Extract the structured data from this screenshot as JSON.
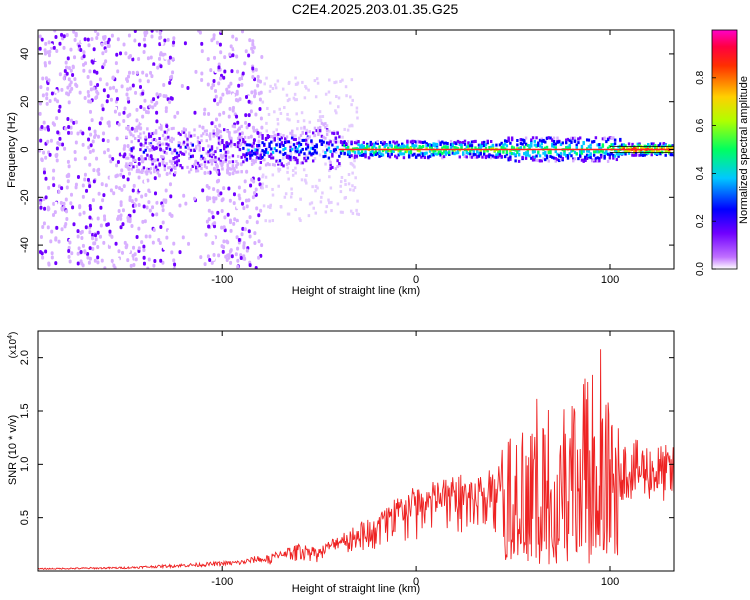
{
  "title": "C2E4.2025.203.01.35.G25",
  "chart_data": [
    {
      "type": "heatmap",
      "xlabel": "Height of straight line (km)",
      "ylabel": "Frequency (Hz)",
      "xlim": [
        -195,
        133
      ],
      "ylim": [
        -50,
        50
      ],
      "x_ticks": [
        -100,
        0,
        100
      ],
      "y_ticks": [
        40,
        20,
        0,
        -20,
        -40
      ],
      "x_tick_labels": [
        "-100",
        "0",
        "100"
      ],
      "y_tick_labels": [
        "40",
        "20",
        "0",
        "-20",
        "-40"
      ],
      "colorbar": {
        "label": "Normalized spectral amplitude",
        "range": [
          0,
          1
        ],
        "ticks": [
          0.0,
          0.2,
          0.4,
          0.6,
          0.8
        ],
        "tick_labels": [
          "0.0",
          "0.2",
          "0.4",
          "0.6",
          "0.8"
        ],
        "colors": [
          "#ffffff",
          "#8a2be2",
          "#0000ff",
          "#00e5ff",
          "#00ff00",
          "#ffff00",
          "#ff8000",
          "#ff0000",
          "#ff00ff"
        ]
      },
      "band": {
        "center_freq_hz": 0,
        "notes": "noise cloud from -195 to -85 km; tonal signal band around 0 Hz from -150 km to 133 km, strongest (red) between -40 and 133 km"
      }
    },
    {
      "type": "line",
      "xlabel": "Height of straight line (km)",
      "ylabel": "SNR (10 * v/v)",
      "y_multiplier": "(x10",
      "y_multiplier_exp": "4",
      "xlim": [
        -195,
        133
      ],
      "ylim": [
        0,
        2.25
      ],
      "x_ticks": [
        -100,
        0,
        100
      ],
      "y_ticks": [
        0.5,
        1.0,
        1.5,
        2.0
      ],
      "x_tick_labels": [
        "-100",
        "0",
        "100"
      ],
      "y_tick_labels": [
        "0.5",
        "1.0",
        "1.5",
        "2.0"
      ],
      "color": "#ee2222",
      "envelope": {
        "x": [
          -195,
          -150,
          -110,
          -90,
          -80,
          -70,
          -60,
          -50,
          -40,
          -30,
          -20,
          -10,
          0,
          10,
          20,
          30,
          40,
          45,
          50,
          60,
          70,
          80,
          90,
          95,
          100,
          105,
          110,
          120,
          133
        ],
        "y": [
          0.02,
          0.03,
          0.06,
          0.08,
          0.12,
          0.2,
          0.26,
          0.22,
          0.35,
          0.45,
          0.55,
          0.7,
          0.8,
          0.85,
          0.9,
          0.93,
          0.95,
          1.3,
          1.4,
          1.6,
          1.7,
          1.75,
          1.9,
          2.2,
          1.5,
          0.95,
          0.95,
          0.94,
          0.9
        ]
      },
      "series": [
        {
          "values_note": "noisy SNR trace following envelope; large oscillations from 45 to 105 km"
        }
      ]
    }
  ]
}
